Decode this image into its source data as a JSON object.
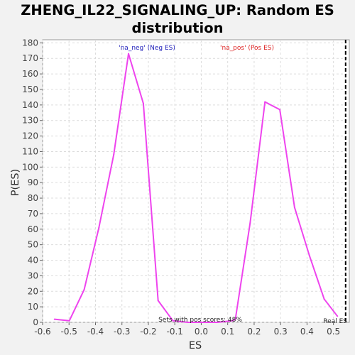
{
  "chart_data": {
    "type": "line",
    "title": "ZHENG_IL22_SIGNALING_UP: Random ES distribution",
    "title_lines": [
      "ZHENG_IL22_SIGNALING_UP: Random ES",
      "distribution"
    ],
    "xlabel": "ES",
    "ylabel": "P(ES)",
    "xlim": [
      -0.6,
      0.56
    ],
    "ylim": [
      0,
      182
    ],
    "xticks": [
      -0.6,
      -0.5,
      -0.4,
      -0.3,
      -0.2,
      -0.1,
      0.0,
      0.1,
      0.2,
      0.3,
      0.4,
      0.5
    ],
    "xtick_labels": [
      "-0.6",
      "-0.5",
      "-0.4",
      "-0.3",
      "-0.2",
      "-0.1",
      "0.0",
      "0.1",
      "0.2",
      "0.3",
      "0.4",
      "0.5"
    ],
    "yticks": [
      0,
      10,
      20,
      30,
      40,
      50,
      60,
      70,
      80,
      90,
      100,
      110,
      120,
      130,
      140,
      150,
      160,
      170,
      180
    ],
    "grid": true,
    "series": [
      {
        "color": "#ee44ee",
        "x": [
          -0.555,
          -0.499,
          -0.443,
          -0.387,
          -0.331,
          -0.275,
          -0.219,
          -0.163,
          -0.107,
          -0.051,
          0.005,
          0.061,
          0.117,
          0.129,
          0.185,
          0.241,
          0.297,
          0.353,
          0.409,
          0.465,
          0.515
        ],
        "y": [
          2,
          1,
          21,
          61,
          108,
          173,
          141,
          14,
          1,
          0,
          0,
          0,
          1,
          2,
          64,
          142,
          137,
          74,
          43,
          15,
          4
        ]
      }
    ],
    "real_es": 0.546,
    "annotations": {
      "neg_label": "'na_neg' (Neg ES)",
      "pos_label": "'na_pos' (Pos ES)",
      "pos_scores": "Sets with pos scores: 48%",
      "real_es_label": "Real ES"
    },
    "colors": {
      "neg": "#2222bb",
      "pos": "#dd2222",
      "line": "#ee44ee",
      "grid": "#dcdcdc",
      "plot_bg": "#ffffff",
      "page_bg": "#f2f2f2"
    }
  }
}
